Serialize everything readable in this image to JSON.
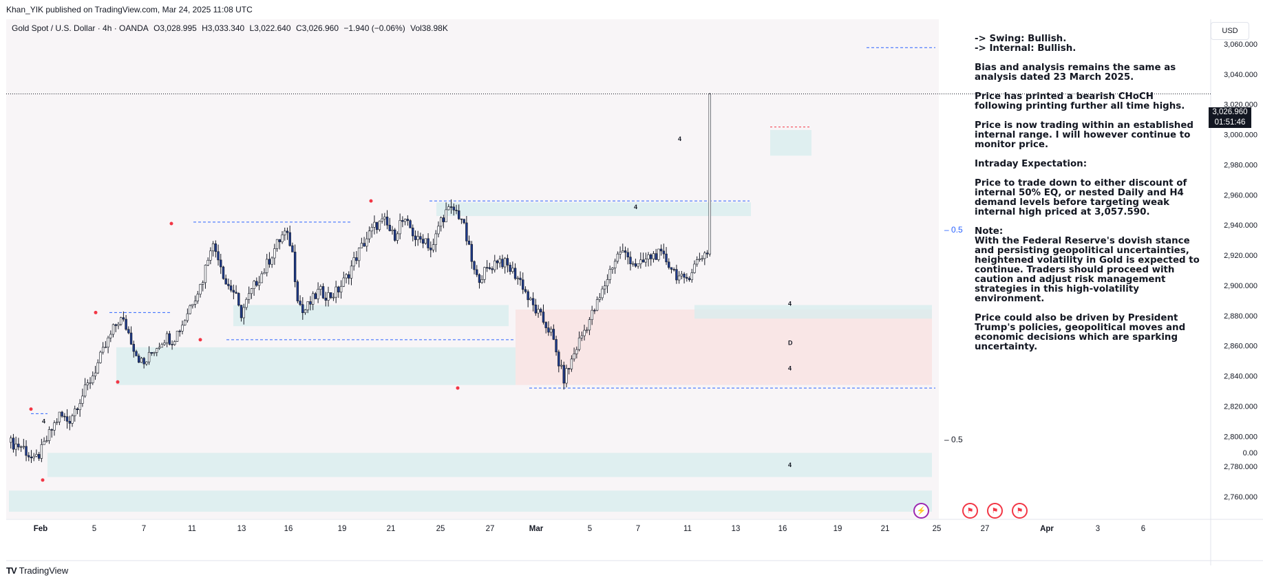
{
  "publisher_line": "Khan_YIK published on TradingView.com, Mar 24, 2025 11:08 UTC",
  "symbol_line": "Gold Spot / U.S. Dollar · 4h · OANDA",
  "ohlc": {
    "open": "O3,028.995",
    "high": "H3,033.340",
    "low": "L3,022.640",
    "close": "C3,026.960",
    "change": "−1.940 (−0.06%)",
    "volume": "Vol38.98K"
  },
  "currency_button": "USD",
  "last_price": "3,026.960",
  "countdown": "01:51:46",
  "half_labels": [
    "0.5",
    "0.5"
  ],
  "notes": [
    "-> Swing:  Bullish.\n-> Internal:  Bullish.",
    "Bias and analysis remains the same as analysis dated 23 March 2025.",
    "Price has printed a bearish CHoCH following printing further all time highs.",
    "Price is now trading within an established internal range.  I will however continue to monitor price.",
    "Intraday Expectation:",
    "Price to trade down to either discount of internal 50% EQ, or nested Daily and H4 demand levels before targeting weak internal high priced at 3,057.590.",
    "Note:\nWith the Federal Reserve's dovish stance and persisting geopolitical uncertainties, heightened volatility in Gold is expected to continue. Traders should proceed with caution and adjust risk management strategies in this high-volatility environment.",
    "Price could also be driven by President Trump's policies, geopolitical moves and economic decisions which are sparking uncertainty."
  ],
  "footer_brand": "TradingView",
  "colors": {
    "up": "#ffffff",
    "down": "#1e3a8a",
    "zone_blue": "#d7ecee",
    "zone_red": "#f9e0e0",
    "dashed": "#2962ff",
    "marker": "#f23645"
  },
  "chart_data": {
    "type": "candlestick",
    "timeframe": "4h",
    "y_ticks": [
      3060,
      3040,
      3020,
      3000,
      2980,
      2960,
      2940,
      2920,
      2900,
      2880,
      2860,
      2840,
      2820,
      2800,
      2780,
      2760
    ],
    "y_tick_labels": [
      "3,060.000",
      "3,040.000",
      "3,020.000",
      "3,000.000",
      "2,980.000",
      "2,960.000",
      "2,940.000",
      "2,920.000",
      "2,900.000",
      "2,880.000",
      "2,860.000",
      "2,840.000",
      "2,820.000",
      "2,800.000",
      "2,780.000",
      "2,760.000",
      "0.00"
    ],
    "x_ticks": [
      "Feb",
      "5",
      "7",
      "11",
      "13",
      "16",
      "19",
      "21",
      "25",
      "27",
      "Mar",
      "5",
      "7",
      "11",
      "13",
      "16",
      "19",
      "21",
      "25",
      "27",
      "Apr",
      "3",
      "6"
    ],
    "ylim": [
      2752,
      3066
    ],
    "n_slots": 385,
    "last_candle_index": 274,
    "current_price": 3026.96,
    "anchors": [
      [
        0,
        2796
      ],
      [
        8,
        2793
      ],
      [
        14,
        2783
      ],
      [
        18,
        2790
      ],
      [
        24,
        2805
      ],
      [
        28,
        2814
      ],
      [
        33,
        2810
      ],
      [
        38,
        2822
      ],
      [
        42,
        2830
      ],
      [
        46,
        2840
      ],
      [
        52,
        2856
      ],
      [
        58,
        2872
      ],
      [
        61,
        2878
      ],
      [
        64,
        2874
      ],
      [
        66,
        2868
      ],
      [
        70,
        2855
      ],
      [
        74,
        2847
      ],
      [
        80,
        2858
      ],
      [
        86,
        2866
      ],
      [
        90,
        2864
      ],
      [
        96,
        2876
      ],
      [
        100,
        2888
      ],
      [
        106,
        2902
      ],
      [
        111,
        2928
      ],
      [
        115,
        2920
      ],
      [
        119,
        2902
      ],
      [
        124,
        2895
      ],
      [
        127,
        2880
      ],
      [
        130,
        2888
      ],
      [
        136,
        2903
      ],
      [
        140,
        2910
      ],
      [
        146,
        2925
      ],
      [
        151,
        2935
      ],
      [
        155,
        2927
      ],
      [
        158,
        2895
      ],
      [
        161,
        2882
      ],
      [
        164,
        2886
      ],
      [
        170,
        2896
      ],
      [
        176,
        2893
      ],
      [
        180,
        2896
      ],
      [
        185,
        2905
      ],
      [
        190,
        2918
      ],
      [
        196,
        2931
      ],
      [
        201,
        2940
      ],
      [
        206,
        2942
      ],
      [
        211,
        2932
      ],
      [
        215,
        2943
      ],
      [
        220,
        2938
      ],
      [
        224,
        2929
      ],
      [
        228,
        2932
      ],
      [
        232,
        2922
      ],
      [
        236,
        2942
      ],
      [
        240,
        2949
      ],
      [
        244,
        2950
      ],
      [
        248,
        2945
      ],
      [
        251,
        2930
      ],
      [
        256,
        2904
      ],
      [
        260,
        2908
      ],
      [
        264,
        2912
      ],
      [
        268,
        2918
      ],
      [
        272,
        2914
      ],
      [
        277,
        2908
      ],
      [
        281,
        2902
      ],
      [
        285,
        2890
      ],
      [
        289,
        2883
      ],
      [
        293,
        2876
      ],
      [
        297,
        2869
      ],
      [
        301,
        2850
      ],
      [
        304,
        2838
      ],
      [
        307,
        2846
      ],
      [
        312,
        2862
      ],
      [
        316,
        2872
      ],
      [
        320,
        2882
      ],
      [
        324,
        2892
      ],
      [
        330,
        2912
      ],
      [
        335,
        2923
      ],
      [
        340,
        2918
      ],
      [
        345,
        2912
      ],
      [
        350,
        2918
      ],
      [
        355,
        2921
      ],
      [
        360,
        2917
      ],
      [
        366,
        2907
      ],
      [
        370,
        2902
      ],
      [
        374,
        2910
      ],
      [
        378,
        2918
      ],
      [
        384,
        2924
      ]
    ],
    "candles_note": "OHLC path reconstructed for the visible 4h candles",
    "annotations": [
      {
        "type": "equal_level",
        "label": "0.5",
        "price": 2941
      },
      {
        "type": "equal_level",
        "label": "0.5",
        "price": 2801
      },
      {
        "type": "weak_high",
        "price": 3057.59
      },
      {
        "type": "zone_label",
        "text": "4",
        "price": 2888
      },
      {
        "type": "zone_label",
        "text": "D",
        "price": 2862
      },
      {
        "type": "zone_label",
        "text": "4",
        "price": 2845
      },
      {
        "type": "zone_label",
        "text": "4",
        "price": 2781
      },
      {
        "type": "zone_label",
        "text": "4",
        "price": 2952
      },
      {
        "type": "zone_label",
        "text": "4",
        "price": 2997
      },
      {
        "type": "zone_label",
        "text": "4",
        "price": 2810
      }
    ]
  }
}
